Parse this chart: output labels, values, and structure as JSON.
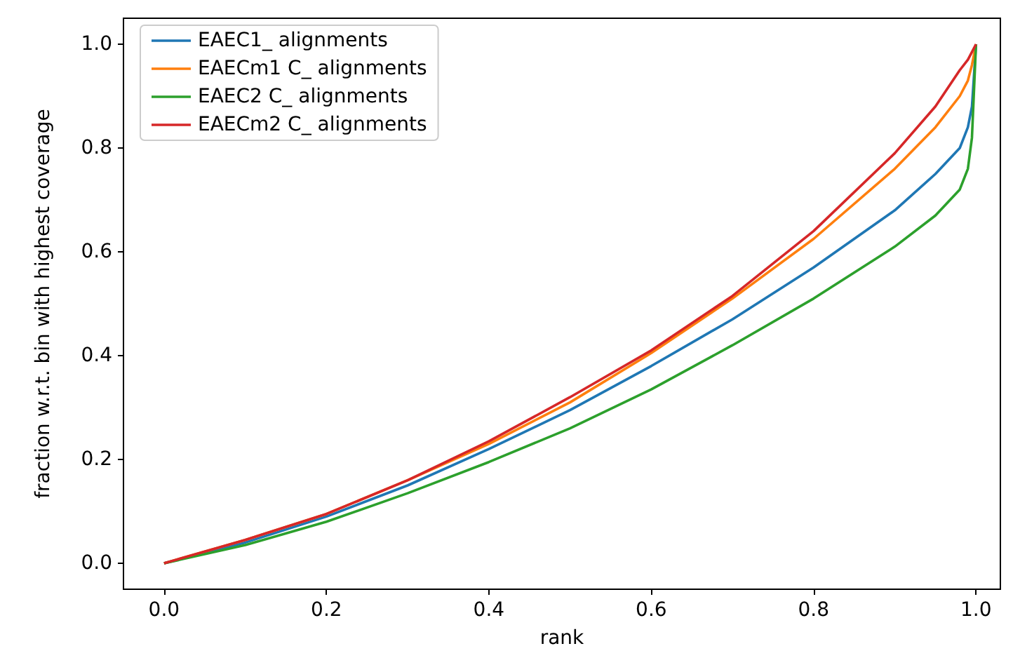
{
  "chart_data": {
    "type": "line",
    "xlabel": "rank",
    "ylabel": "fraction w.r.t. bin with highest coverage",
    "xlim": [
      -0.05,
      1.03
    ],
    "ylim": [
      -0.05,
      1.05
    ],
    "xticks": [
      {
        "value": 0,
        "label": "0.0"
      },
      0.2,
      0.4,
      0.6,
      0.8,
      {
        "value": 1,
        "label": "1.0"
      }
    ],
    "yticks": [
      {
        "value": 0,
        "label": "0.0"
      },
      0.2,
      0.4,
      0.6,
      0.8,
      {
        "value": 1,
        "label": "1.0"
      }
    ],
    "legend": "top left",
    "grid": false,
    "marker": "none",
    "line_style": "solid",
    "x": [
      0,
      0.1,
      0.2,
      0.3,
      0.4,
      0.5,
      0.6,
      0.7,
      0.8,
      0.9,
      0.95,
      0.98,
      0.99,
      0.995,
      1.0
    ],
    "series": [
      {
        "name": "EAEC1_ alignments",
        "color": "#1f77b4",
        "values": [
          0,
          0.04,
          0.09,
          0.15,
          0.22,
          0.295,
          0.38,
          0.47,
          0.57,
          0.68,
          0.75,
          0.8,
          0.84,
          0.88,
          1.0
        ]
      },
      {
        "name": "EAECm1 C_ alignments",
        "color": "#ff7f0e",
        "values": [
          0,
          0.045,
          0.095,
          0.16,
          0.23,
          0.31,
          0.405,
          0.51,
          0.625,
          0.76,
          0.84,
          0.9,
          0.93,
          0.96,
          1.0
        ]
      },
      {
        "name": "EAEC2 C_ alignments",
        "color": "#2ca02c",
        "values": [
          0,
          0.035,
          0.08,
          0.135,
          0.195,
          0.26,
          0.335,
          0.42,
          0.51,
          0.61,
          0.67,
          0.72,
          0.76,
          0.82,
          1.0
        ]
      },
      {
        "name": "EAECm2 C_ alignments",
        "color": "#d62728",
        "values": [
          0,
          0.045,
          0.095,
          0.16,
          0.235,
          0.32,
          0.41,
          0.515,
          0.64,
          0.79,
          0.88,
          0.95,
          0.97,
          0.985,
          1.0
        ]
      }
    ]
  }
}
